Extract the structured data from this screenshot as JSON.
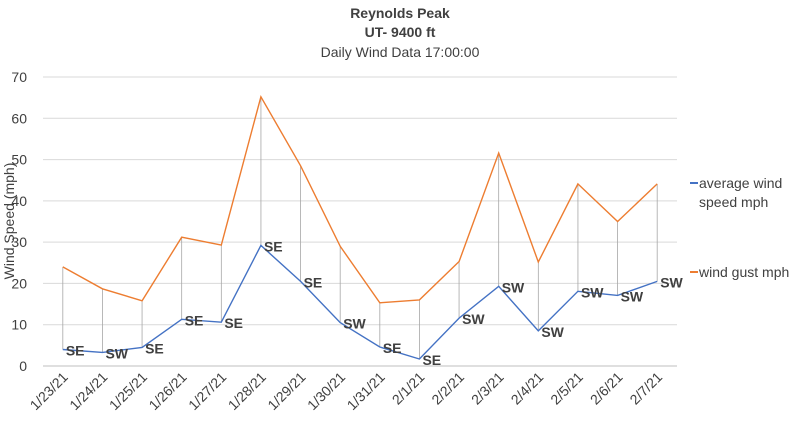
{
  "chart_data": {
    "type": "line",
    "title": "Reynolds Peak",
    "subtitle1": "UT- 9400 ft",
    "subtitle2": "Daily Wind Data 17:00:00",
    "ylabel": "Wind Speed (mph)",
    "ylim": [
      0,
      70
    ],
    "yticks": [
      0,
      10,
      20,
      30,
      40,
      50,
      60,
      70
    ],
    "categories": [
      "1/23/21",
      "1/24/21",
      "1/25/21",
      "1/26/21",
      "1/27/21",
      "1/28/21",
      "1/29/21",
      "1/30/21",
      "1/31/21",
      "2/1/21",
      "2/2/21",
      "2/3/21",
      "2/4/21",
      "2/5/21",
      "2/6/21",
      "2/7/21"
    ],
    "series": [
      {
        "name": "average wind speed mph",
        "color": "#4472C4",
        "values": [
          4,
          3.3,
          4.5,
          11.3,
          10.6,
          29.2,
          20.5,
          10.5,
          4.6,
          1.7,
          11.6,
          19.3,
          8.5,
          18.1,
          17.1,
          20.5
        ]
      },
      {
        "name": "wind gust mph",
        "color": "#ED7D31",
        "values": [
          24,
          18.7,
          15.8,
          31.2,
          29.3,
          65.2,
          48.5,
          29,
          15.3,
          16,
          25.3,
          51.6,
          25.2,
          44.1,
          35,
          44.1
        ]
      }
    ],
    "directions": [
      "SE",
      "SW",
      "SE",
      "SE",
      "SE",
      "SE",
      "SE",
      "SW",
      "SE",
      "SE",
      "SW",
      "SW",
      "SW",
      "SW",
      "SW",
      "SW"
    ],
    "grid": true,
    "legend_position": "right",
    "high_low_lines": true
  }
}
